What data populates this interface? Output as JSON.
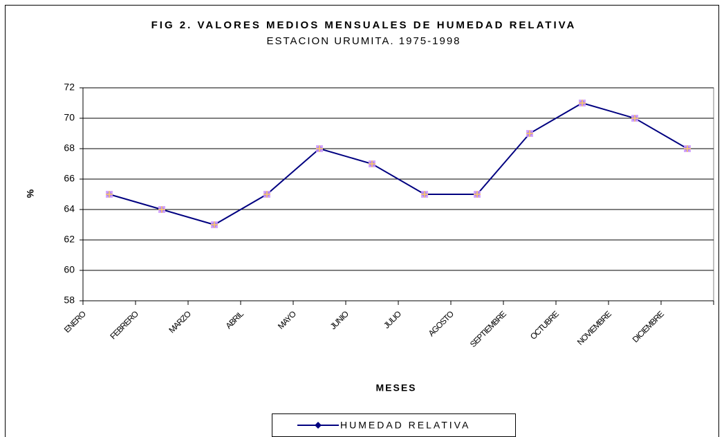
{
  "chart_data": {
    "type": "line",
    "title": "FIG 2. VALORES MEDIOS MENSUALES DE HUMEDAD RELATIVA",
    "subtitle": "ESTACION URUMITA. 1975-1998",
    "x_label": "MESES",
    "y_label": "%",
    "categories": [
      "ENERO",
      "FEBRERO",
      "MARZO",
      "ABRIL",
      "MAYO",
      "JUNIO",
      "JULIO",
      "AGOSTO",
      "SEPTIEMBRE",
      "OCTUBRE",
      "NOVIEMBRE",
      "DICIEMBRE"
    ],
    "series": [
      {
        "name": "HUMEDAD RELATIVA",
        "color": "#000080",
        "marker_color": "#cc99ff",
        "values": [
          65,
          64,
          63,
          65,
          68,
          67,
          65,
          65,
          69,
          71,
          70,
          68
        ]
      }
    ],
    "ylim": [
      58,
      72
    ],
    "yticks": [
      58,
      60,
      62,
      64,
      66,
      68,
      70,
      72
    ],
    "grid": true,
    "legend": "bottom"
  }
}
